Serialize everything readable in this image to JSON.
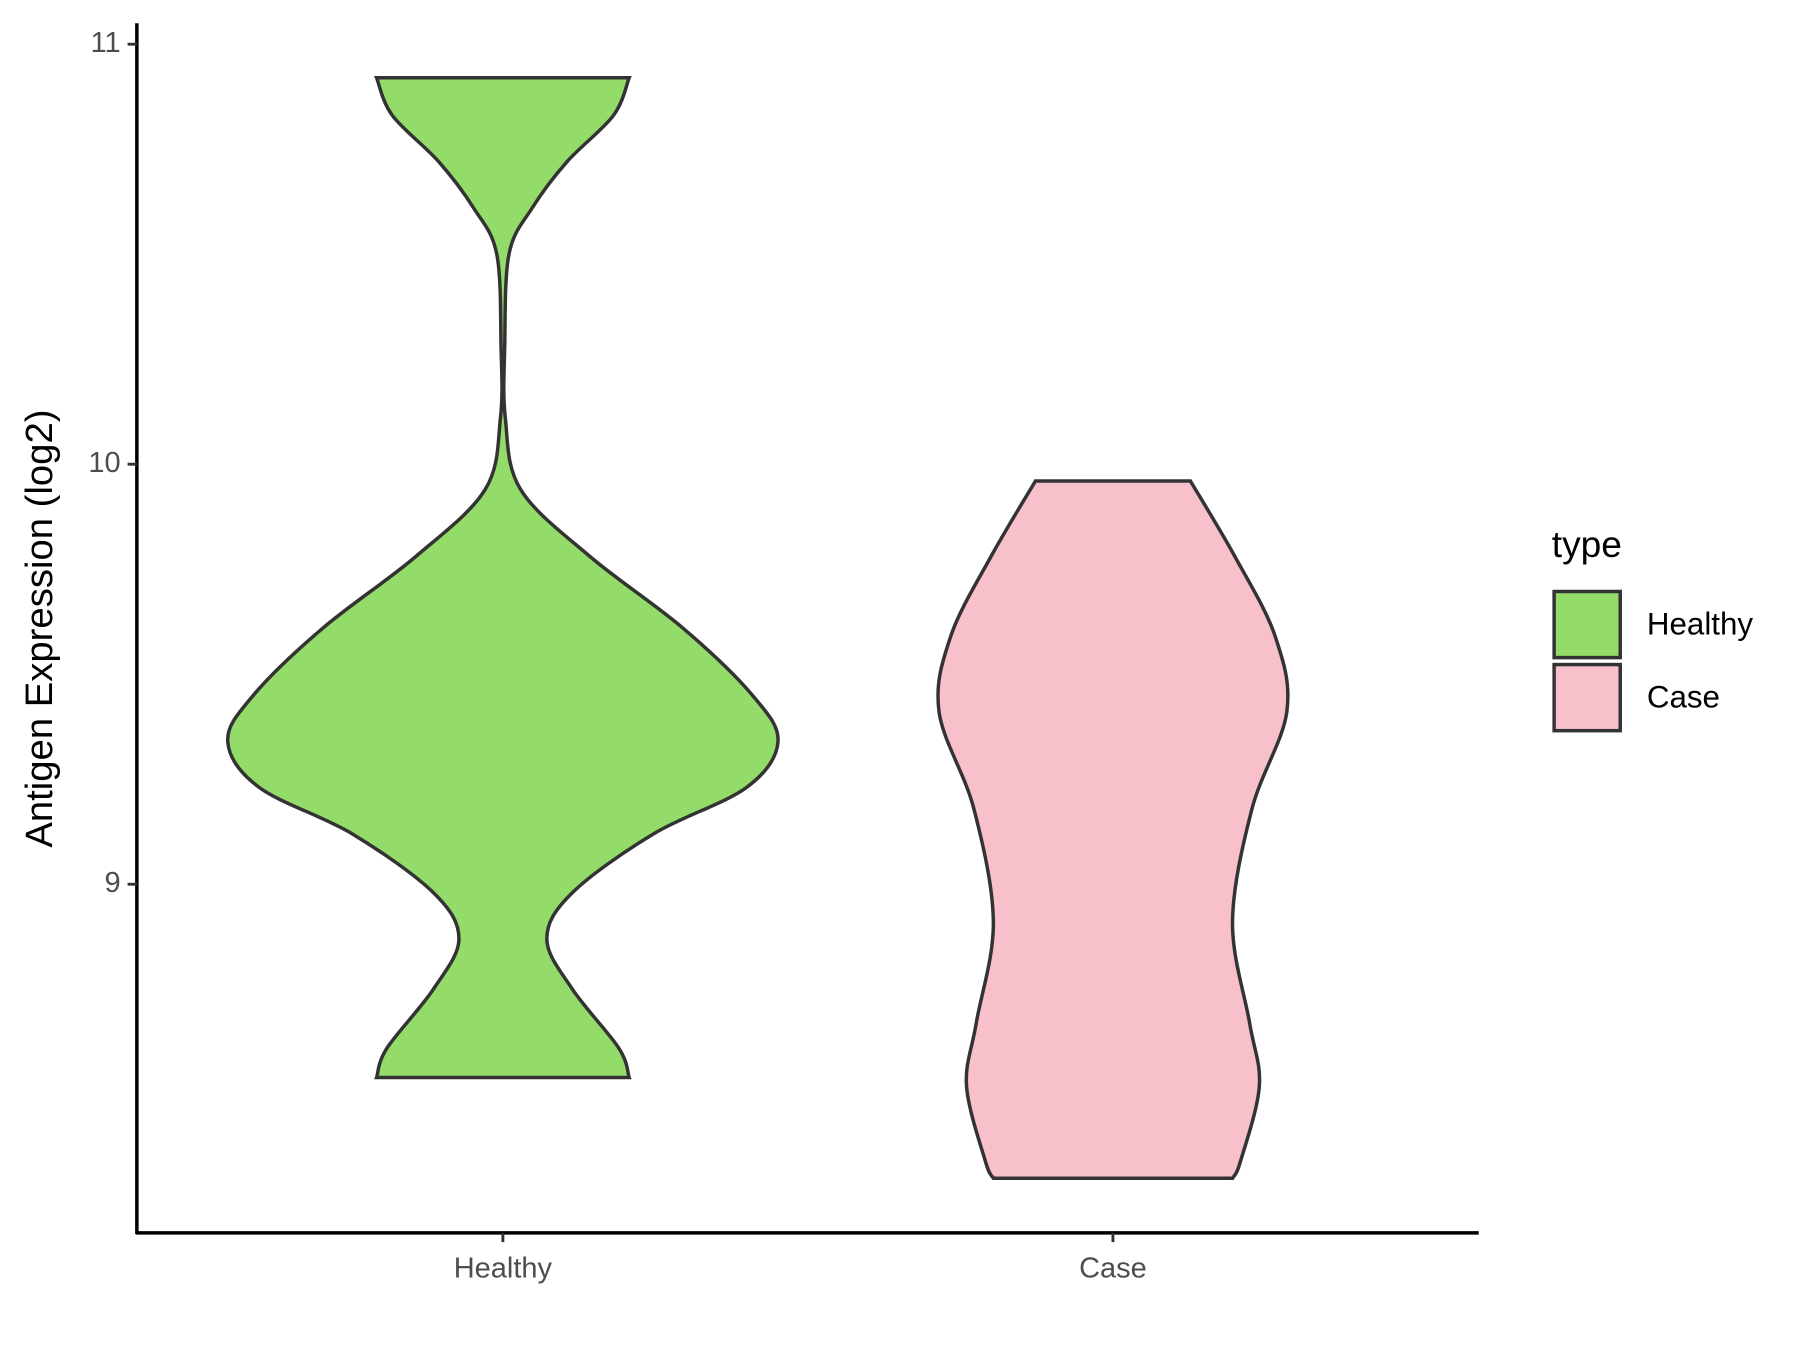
{
  "chart_data": {
    "type": "violin",
    "y_label": "Antigen Expression (log2)",
    "categories": [
      "Healthy",
      "Case"
    ],
    "series": [
      {
        "name": "Healthy",
        "color": "#93dc6a",
        "y": [
          10.92,
          10.83,
          10.72,
          10.61,
          10.5,
          10.28,
          10.11,
          9.94,
          9.78,
          9.61,
          9.45,
          9.34,
          9.23,
          9.12,
          8.98,
          8.87,
          8.75,
          8.61,
          8.54
        ],
        "half_width": [
          0.207,
          0.181,
          0.105,
          0.048,
          0.01,
          0.003,
          0.004,
          0.029,
          0.143,
          0.295,
          0.409,
          0.451,
          0.399,
          0.247,
          0.114,
          0.072,
          0.114,
          0.19,
          0.207
        ]
      },
      {
        "name": "Case",
        "color": "#f7c0cb",
        "y": [
          9.96,
          9.78,
          9.59,
          9.41,
          9.18,
          8.91,
          8.67,
          8.52,
          8.34,
          8.3
        ],
        "half_width": [
          0.127,
          0.2,
          0.266,
          0.285,
          0.228,
          0.196,
          0.224,
          0.24,
          0.209,
          0.196
        ]
      }
    ],
    "ylim": [
      8.17,
      11.05
    ],
    "yticks": [
      9,
      10,
      11
    ],
    "legend_title": "type",
    "legend": "right"
  }
}
